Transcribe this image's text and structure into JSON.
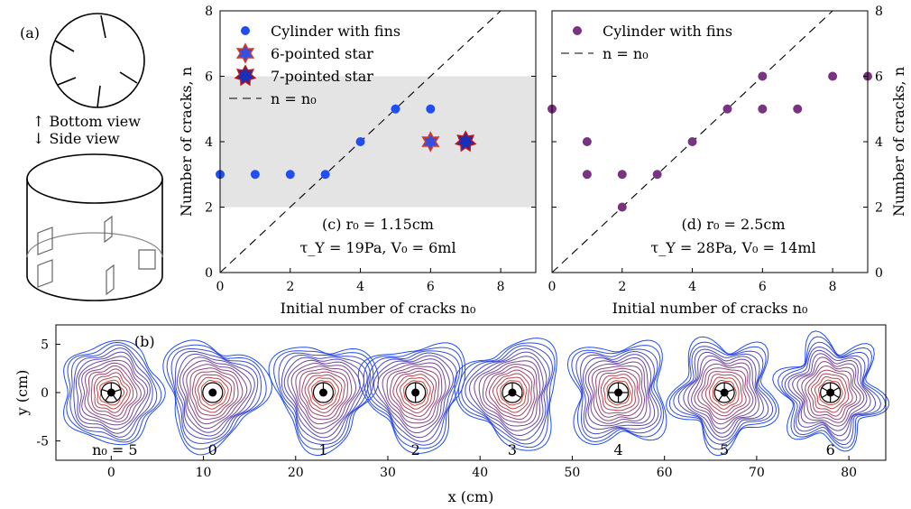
{
  "panel_a": {
    "label": "(a)",
    "bottom_view": "↑ Bottom view",
    "side_view": "↓ Side view"
  },
  "chart_data": [
    {
      "id": "c",
      "type": "scatter",
      "xlabel": "Initial number of cracks n₀",
      "ylabel": "Number of cracks, n",
      "xlim": [
        0,
        9
      ],
      "ylim": [
        0,
        8
      ],
      "xticks": [
        "0",
        "2",
        "4",
        "6",
        "8"
      ],
      "yticks": [
        "0",
        "2",
        "4",
        "6",
        "8"
      ],
      "shaded_band": [
        2,
        6
      ],
      "grid": false,
      "legend_position": "top-left",
      "legend": [
        "Cylinder with fins",
        "6-pointed star",
        "7-pointed star",
        "n = n₀"
      ],
      "annotation": [
        "(c) r₀ = 1.15cm",
        "τ_Y = 19Pa,   V₀ = 6ml"
      ],
      "series": [
        {
          "name": "Cylinder with fins",
          "color": "#1f4ef5",
          "marker": "circle",
          "x": [
            0,
            1,
            2,
            3,
            4,
            5,
            6
          ],
          "y": [
            3,
            3,
            3,
            3,
            4,
            5,
            5
          ]
        },
        {
          "name": "6-pointed star",
          "color": "#3550e0",
          "edge": "#d33a2a",
          "marker": "star6",
          "x": [
            6
          ],
          "y": [
            4
          ]
        },
        {
          "name": "7-pointed star",
          "color": "#1a2fb8",
          "edge": "#b8141c",
          "marker": "star7",
          "x": [
            7
          ],
          "y": [
            4
          ]
        },
        {
          "name": "n = n₀",
          "marker": "dashed-line",
          "x": [
            0,
            8
          ],
          "y": [
            0,
            8
          ]
        }
      ]
    },
    {
      "id": "d",
      "type": "scatter",
      "xlabel": "Initial number of cracks n₀",
      "ylabel": "Number of cracks, n",
      "xlim": [
        0,
        9
      ],
      "ylim": [
        0,
        8
      ],
      "xticks": [
        "0",
        "2",
        "4",
        "6",
        "8"
      ],
      "yticks": [
        "0",
        "2",
        "4",
        "6",
        "8"
      ],
      "grid": false,
      "legend_position": "top-left",
      "legend": [
        "Cylinder with fins",
        "n = n₀"
      ],
      "annotation": [
        "(d) r₀ = 2.5cm",
        "τ_Y = 28Pa,  V₀ = 14ml"
      ],
      "series": [
        {
          "name": "Cylinder with fins",
          "color": "#7a3380",
          "marker": "circle",
          "x": [
            0,
            1,
            1,
            2,
            2,
            3,
            4,
            5,
            6,
            6,
            7,
            8,
            9
          ],
          "y": [
            5,
            4,
            3,
            3,
            2,
            3,
            4,
            5,
            6,
            5,
            5,
            6,
            6
          ]
        },
        {
          "name": "n = n₀",
          "marker": "dashed-line",
          "x": [
            0,
            8
          ],
          "y": [
            0,
            8
          ]
        }
      ]
    },
    {
      "id": "b",
      "type": "contour",
      "panel_label": "(b)",
      "xlabel": "x (cm)",
      "ylabel": "y (cm)",
      "xlim": [
        -6,
        84
      ],
      "ylim": [
        -7,
        7
      ],
      "xticks": [
        "0",
        "10",
        "20",
        "30",
        "40",
        "50",
        "60",
        "70",
        "80"
      ],
      "yticks": [
        "-5",
        "0",
        "5"
      ],
      "n0_labels": [
        "n₀ = 5",
        "0",
        "1",
        "2",
        "3",
        "4",
        "5",
        "6"
      ],
      "patterns": [
        {
          "cx": 0,
          "arms": 5,
          "cracks": 5
        },
        {
          "cx": 11,
          "arms": 3,
          "cracks": 0
        },
        {
          "cx": 23,
          "arms": 3,
          "cracks": 1
        },
        {
          "cx": 33,
          "arms": 3,
          "cracks": 2
        },
        {
          "cx": 43.5,
          "arms": 3,
          "cracks": 3
        },
        {
          "cx": 55,
          "arms": 4,
          "cracks": 4
        },
        {
          "cx": 66.5,
          "arms": 5,
          "cracks": 5
        },
        {
          "cx": 78,
          "arms": 6,
          "cracks": 6
        }
      ],
      "color_inner": "#e8401a",
      "color_outer": "#1f4ef5"
    }
  ]
}
